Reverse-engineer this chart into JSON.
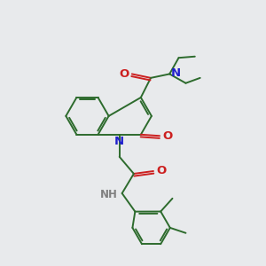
{
  "bg_color": "#e8eaec",
  "bond_color": "#2d6b2d",
  "n_color": "#2020cc",
  "o_color": "#cc2020",
  "nh_color": "#808080",
  "bond_width": 1.4,
  "font_size": 8.5,
  "fig_size": [
    3.0,
    3.0
  ],
  "dpi": 100,
  "xlim": [
    0,
    10
  ],
  "ylim": [
    0,
    10
  ]
}
